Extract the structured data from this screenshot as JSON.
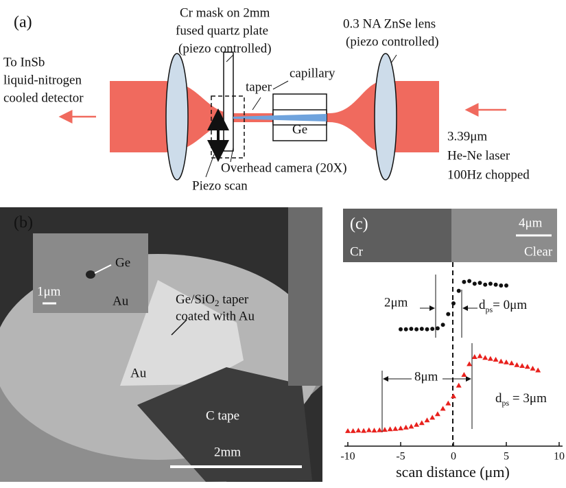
{
  "panel_a": {
    "label": "(a)",
    "detector": [
      "To InSb",
      "liquid-nitrogen",
      "cooled detector"
    ],
    "mask": [
      "Cr mask on 2mm",
      "fused quartz plate",
      "(piezo controlled)"
    ],
    "lens": [
      "0.3 NA ZnSe lens",
      "(piezo controlled)"
    ],
    "capillary": "capillary",
    "taper": "taper",
    "ge": "Ge",
    "camera": "Overhead camera (20X)",
    "piezo": "Piezo scan",
    "laser": [
      "3.39μm",
      "He-Ne laser",
      "100Hz chopped"
    ]
  },
  "panel_b": {
    "label": "(b)",
    "inset_ge": "Ge",
    "inset_scale": "1μm",
    "inset_au": "Au",
    "taper": [
      "Ge/SiO",
      "2",
      " taper",
      "coated with Au"
    ],
    "au": "Au",
    "tape": "C tape",
    "scale": "2mm"
  },
  "chart_data": {
    "type": "scatter",
    "label": "(c)",
    "image_scale": "4μm",
    "image_left": "Cr",
    "image_right": "Clear",
    "x_label": "scan distance (μm)",
    "xlim": [
      -10,
      10
    ],
    "xticks": [
      -10,
      -5,
      0,
      5,
      10
    ],
    "ylim": [
      0,
      1
    ],
    "annotations": {
      "width_0": "2μm",
      "dps_0": [
        "d",
        "ps",
        "= 0μm"
      ],
      "width_3": "8μm",
      "dps_3": [
        "d",
        "ps",
        " = 3μm"
      ]
    },
    "series": [
      {
        "marker": "circle",
        "color": "#111111",
        "x": [
          -5,
          -4.5,
          -4,
          -3.5,
          -3,
          -2.5,
          -2,
          -1.5,
          -1,
          -0.5,
          0,
          0.5,
          1,
          1.5,
          2,
          2.5,
          3,
          3.5,
          4,
          4.5,
          5
        ],
        "values": [
          0.655,
          0.655,
          0.657,
          0.655,
          0.657,
          0.655,
          0.657,
          0.66,
          0.68,
          0.74,
          0.8,
          0.87,
          0.92,
          0.925,
          0.91,
          0.915,
          0.905,
          0.91,
          0.905,
          0.9,
          0.9
        ]
      },
      {
        "marker": "triangle",
        "color": "#e8211d",
        "x": [
          -10,
          -9.5,
          -9,
          -8.5,
          -8,
          -7.5,
          -7,
          -6.5,
          -6,
          -5.5,
          -5,
          -4.5,
          -4,
          -3.5,
          -3,
          -2.5,
          -2,
          -1.5,
          -1,
          -0.5,
          0,
          0.5,
          1,
          1.5,
          2,
          2.5,
          3,
          3.5,
          4,
          4.5,
          5,
          5.5,
          6,
          6.5,
          7,
          7.5,
          8
        ],
        "values": [
          0.085,
          0.085,
          0.088,
          0.086,
          0.09,
          0.088,
          0.09,
          0.092,
          0.095,
          0.097,
          0.1,
          0.105,
          0.11,
          0.12,
          0.13,
          0.145,
          0.16,
          0.18,
          0.21,
          0.24,
          0.28,
          0.34,
          0.4,
          0.46,
          0.5,
          0.505,
          0.495,
          0.49,
          0.485,
          0.475,
          0.47,
          0.465,
          0.455,
          0.45,
          0.445,
          0.435,
          0.425
        ]
      }
    ]
  }
}
